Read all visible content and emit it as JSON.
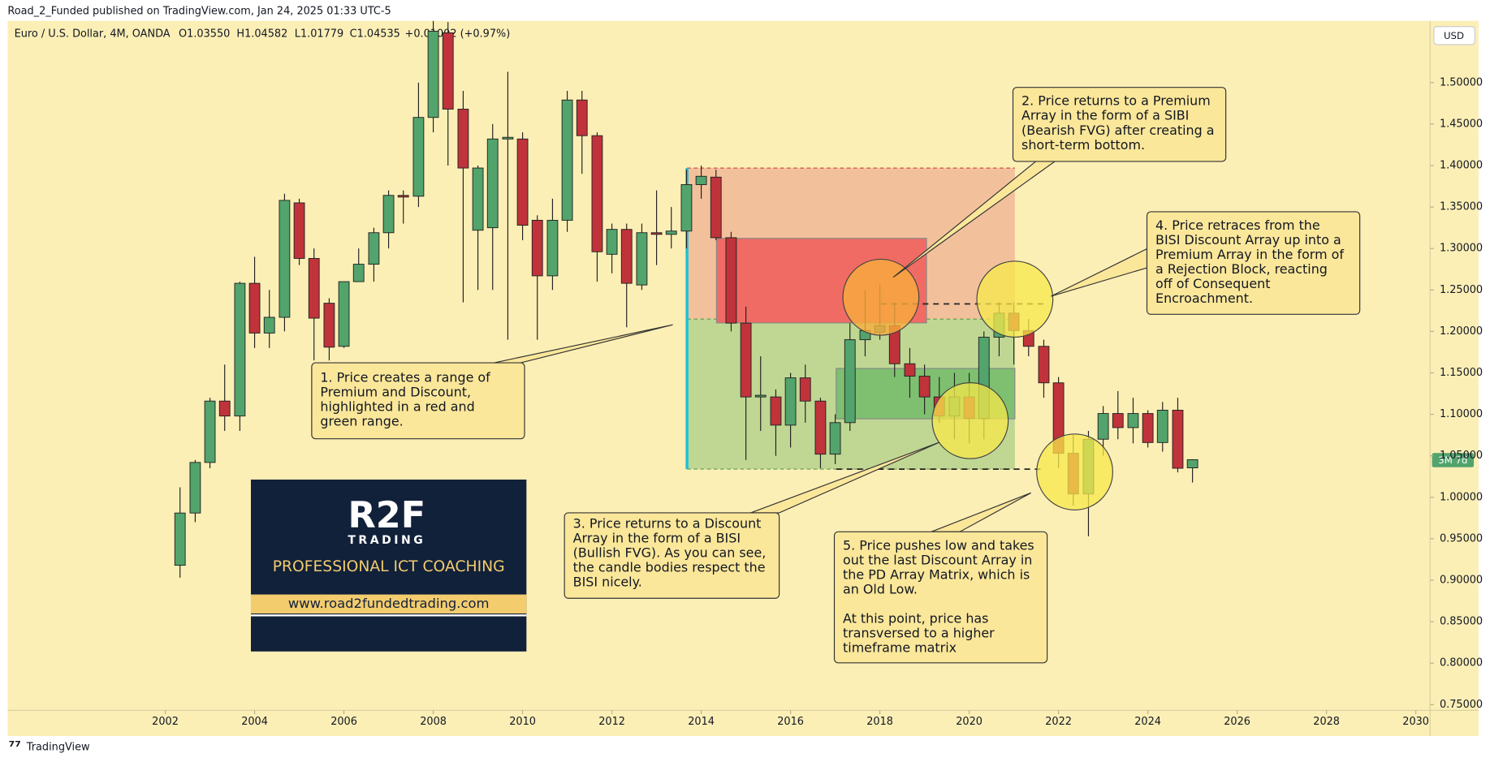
{
  "header": {
    "publisher": "Road_2_Funded published on TradingView.com, Jan 24, 2025 01:33 UTC-5",
    "symbol": "Euro / U.S. Dollar, 4M, OANDA",
    "ohlc": [
      "O1.03550",
      "H1.04582",
      "L1.01779",
      "C1.04535"
    ],
    "change": "+0.01002 (+0.97%)",
    "currency": "USD",
    "countdown": "3M 7d"
  },
  "chart_data": {
    "type": "candlestick",
    "up_color": "#52a46c",
    "down_color": "#c0333b",
    "x": [
      2002.33,
      2002.67,
      2003,
      2003.33,
      2003.67,
      2004,
      2004.33,
      2004.67,
      2005,
      2005.33,
      2005.67,
      2006,
      2006.33,
      2006.67,
      2007,
      2007.33,
      2007.67,
      2008,
      2008.33,
      2008.67,
      2009,
      2009.33,
      2009.67,
      2010,
      2010.33,
      2010.67,
      2011,
      2011.33,
      2011.67,
      2012,
      2012.33,
      2012.67,
      2013,
      2013.33,
      2013.67,
      2014,
      2014.33,
      2014.67,
      2015,
      2015.33,
      2015.67,
      2016,
      2016.33,
      2016.67,
      2017,
      2017.33,
      2017.67,
      2018,
      2018.33,
      2018.67,
      2019,
      2019.33,
      2019.67,
      2020,
      2020.33,
      2020.67,
      2021,
      2021.33,
      2021.67,
      2022,
      2022.33,
      2022.67,
      2023,
      2023.33,
      2023.67,
      2024,
      2024.33,
      2024.67,
      2025
    ],
    "open": [
      0.918,
      0.981,
      1.042,
      1.116,
      1.098,
      1.258,
      1.198,
      1.217,
      1.355,
      1.288,
      1.234,
      1.182,
      1.26,
      1.281,
      1.319,
      1.364,
      1.363,
      1.458,
      1.56,
      1.468,
      1.322,
      1.325,
      1.432,
      1.432,
      1.334,
      1.267,
      1.334,
      1.479,
      1.436,
      1.293,
      1.323,
      1.256,
      1.319,
      1.317,
      1.321,
      1.377,
      1.386,
      1.313,
      1.21,
      1.121,
      1.121,
      1.087,
      1.144,
      1.116,
      1.052,
      1.09,
      1.19,
      1.199,
      1.207,
      1.161,
      1.146,
      1.121,
      1.098,
      1.121,
      1.095,
      1.193,
      1.222,
      1.201,
      1.182,
      1.138,
      1.053,
      1.004,
      1.07,
      1.101,
      1.084,
      1.101,
      1.066,
      1.105,
      1.0355
    ],
    "high": [
      1.012,
      1.045,
      1.12,
      1.16,
      1.26,
      1.29,
      1.25,
      1.366,
      1.36,
      1.3,
      1.24,
      1.26,
      1.3,
      1.325,
      1.37,
      1.37,
      1.5,
      1.577,
      1.573,
      1.49,
      1.4,
      1.45,
      1.513,
      1.44,
      1.34,
      1.36,
      1.49,
      1.49,
      1.44,
      1.33,
      1.33,
      1.33,
      1.37,
      1.35,
      1.395,
      1.4,
      1.395,
      1.32,
      1.23,
      1.17,
      1.13,
      1.15,
      1.16,
      1.12,
      1.1,
      1.21,
      1.25,
      1.256,
      1.235,
      1.18,
      1.16,
      1.145,
      1.15,
      1.15,
      1.2,
      1.235,
      1.235,
      1.215,
      1.19,
      1.145,
      1.075,
      1.08,
      1.11,
      1.128,
      1.12,
      1.105,
      1.115,
      1.12,
      1.04582
    ],
    "low": [
      0.903,
      0.97,
      1.035,
      1.08,
      1.08,
      1.18,
      1.18,
      1.2,
      1.28,
      1.165,
      1.165,
      1.18,
      1.26,
      1.26,
      1.3,
      1.33,
      1.35,
      1.44,
      1.4,
      1.235,
      1.25,
      1.25,
      1.19,
      1.31,
      1.19,
      1.25,
      1.32,
      1.39,
      1.26,
      1.27,
      1.205,
      1.25,
      1.28,
      1.3,
      1.3,
      1.36,
      1.31,
      1.2,
      1.045,
      1.08,
      1.05,
      1.06,
      1.09,
      1.035,
      1.04,
      1.08,
      1.17,
      1.19,
      1.145,
      1.12,
      1.1,
      1.09,
      1.07,
      1.065,
      1.07,
      1.17,
      1.16,
      1.17,
      1.12,
      1.035,
      0.99,
      0.953,
      1.05,
      1.07,
      1.065,
      1.06,
      1.055,
      1.03,
      1.01779
    ],
    "close": [
      0.981,
      1.042,
      1.116,
      1.098,
      1.258,
      1.198,
      1.217,
      1.358,
      1.288,
      1.216,
      1.181,
      1.26,
      1.281,
      1.319,
      1.364,
      1.362,
      1.458,
      1.562,
      1.468,
      1.397,
      1.397,
      1.432,
      1.434,
      1.328,
      1.267,
      1.334,
      1.479,
      1.436,
      1.296,
      1.323,
      1.258,
      1.319,
      1.317,
      1.321,
      1.377,
      1.387,
      1.313,
      1.21,
      1.121,
      1.123,
      1.087,
      1.144,
      1.116,
      1.052,
      1.09,
      1.19,
      1.201,
      1.207,
      1.161,
      1.146,
      1.121,
      1.098,
      1.121,
      1.095,
      1.193,
      1.222,
      1.201,
      1.182,
      1.138,
      1.053,
      1.004,
      1.07,
      1.101,
      1.084,
      1.101,
      1.066,
      1.105,
      1.035,
      1.04535
    ],
    "xlim": [
      1998.47,
      2030.32
    ],
    "xticks": [
      2002,
      2004,
      2006,
      2008,
      2010,
      2012,
      2014,
      2016,
      2018,
      2020,
      2022,
      2024,
      2026,
      2028,
      2030
    ],
    "ylim": [
      0.7431,
      1.5744
    ],
    "yticks": [
      {
        "value": 0.75,
        "label": "0.75000"
      },
      {
        "value": 0.8,
        "label": "0.80000"
      },
      {
        "value": 0.85,
        "label": "0.85000"
      },
      {
        "value": 0.9,
        "label": "0.90000"
      },
      {
        "value": 0.95,
        "label": "0.95000"
      },
      {
        "value": 1.0,
        "label": "1.00000"
      },
      {
        "value": 1.05,
        "label": "1.05000"
      },
      {
        "value": 1.1,
        "label": "1.10000"
      },
      {
        "value": 1.15,
        "label": "1.15000"
      },
      {
        "value": 1.2,
        "label": "1.20000"
      },
      {
        "value": 1.25,
        "label": "1.25000"
      },
      {
        "value": 1.3,
        "label": "1.30000"
      },
      {
        "value": 1.35,
        "label": "1.35000"
      },
      {
        "value": 1.4,
        "label": "1.40000"
      },
      {
        "value": 1.45,
        "label": "1.45000"
      },
      {
        "value": 1.5,
        "label": "1.50000"
      }
    ],
    "grid": false
  },
  "annotations": [
    [
      [
        "1. Price creates a range of",
        "Premium and Discount,",
        "highlighted in a red and",
        "green range."
      ]
    ],
    [
      [
        "2. Price returns to a Premium",
        "Array in the form of a SIBI",
        "(Bearish FVG) after creating a",
        "short-term bottom."
      ]
    ],
    [
      [
        "3. Price returns to a Discount",
        "Array in the form of a BISI",
        "(Bullish FVG). As you can see,",
        "the candle bodies respect the",
        "BISI nicely."
      ]
    ],
    [
      [
        "4. Price retraces from the",
        "BISI Discount Array up into a",
        "Premium Array in the form of",
        "a Rejection Block, reacting",
        "off of Consequent",
        "Encroachment."
      ]
    ],
    [
      [
        "5. Price pushes low and takes",
        "out the last Discount Array in",
        "the PD Array Matrix, which is",
        "an Old Low."
      ],
      [
        "At this point, price has",
        "transversed to a higher",
        "timeframe matrix"
      ]
    ]
  ],
  "logo": {
    "mark": "R2F",
    "sub": "TRADING",
    "tagline": "PROFESSIONAL ICT COACHING",
    "url": "www.road2fundedtrading.com"
  },
  "footer": "TradingView"
}
